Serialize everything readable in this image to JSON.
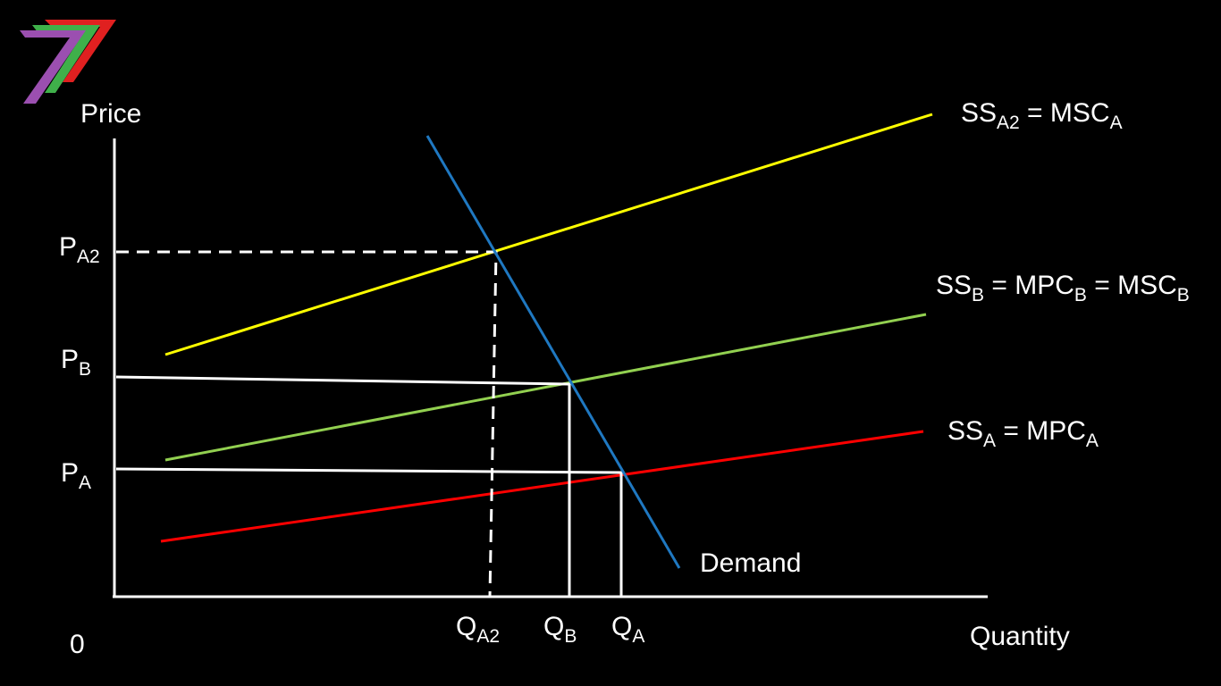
{
  "axes": {
    "y_label": "Price",
    "x_label": "Quantity",
    "origin": "0"
  },
  "price_labels": [
    {
      "parts": [
        "P",
        "A2"
      ]
    },
    {
      "parts": [
        "P",
        "B"
      ]
    },
    {
      "parts": [
        "P",
        "A"
      ]
    }
  ],
  "quantity_labels": [
    {
      "parts": [
        "Q",
        "A2"
      ]
    },
    {
      "parts": [
        "Q",
        "B"
      ]
    },
    {
      "parts": [
        "Q",
        "A"
      ]
    }
  ],
  "curve_labels": [
    {
      "parts": [
        "SS",
        "A2",
        " = MSC",
        "A"
      ]
    },
    {
      "parts": [
        "SS",
        "B",
        " = MPC",
        "B",
        " = MSC",
        "B"
      ]
    },
    {
      "parts": [
        "SS",
        "A",
        " = MPC",
        "A"
      ]
    },
    {
      "parts": [
        "Demand"
      ]
    }
  ]
}
